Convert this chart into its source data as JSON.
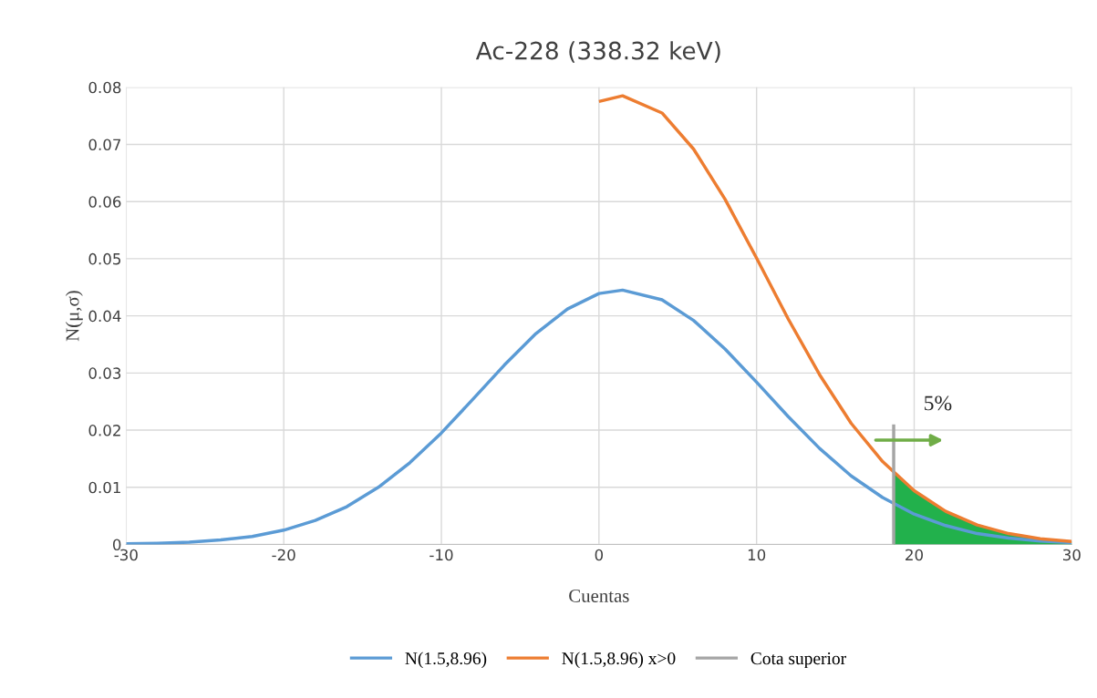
{
  "chart_data": {
    "type": "line",
    "title": "Ac-228 (338.32 keV)",
    "xlabel": "Cuentas",
    "ylabel": "N(μ,σ)",
    "xlim": [
      -30,
      30
    ],
    "xticks": [
      -30,
      -20,
      -10,
      0,
      10,
      20,
      30
    ],
    "ylim": [
      0,
      0.08
    ],
    "yticks": [
      0,
      0.01,
      0.02,
      0.03,
      0.04,
      0.05,
      0.06,
      0.07,
      0.08
    ],
    "grid": true,
    "legend": "bottom",
    "series": [
      {
        "type": "area",
        "color": "#22b14c",
        "x": [
          18.7,
          20,
          22,
          24,
          26,
          28,
          30
        ],
        "values": [
          0.0124,
          0.0094,
          0.0058,
          0.0034,
          0.0019,
          0.001,
          0.0005
        ]
      },
      {
        "name": "N(1.5,8.96)",
        "color": "#5b9bd5",
        "x": [
          -30,
          -28,
          -26,
          -24,
          -22,
          -20,
          -18,
          -16,
          -14,
          -12,
          -10,
          -8,
          -6,
          -4,
          -2,
          0,
          1.5,
          4,
          6,
          8,
          10,
          12,
          14,
          16,
          18,
          20,
          22,
          24,
          26,
          28,
          30
        ],
        "values": [
          0.0001,
          0.0002,
          0.0004,
          0.0008,
          0.0014,
          0.0025,
          0.0042,
          0.0066,
          0.01,
          0.0143,
          0.0195,
          0.0254,
          0.0314,
          0.0369,
          0.0412,
          0.0439,
          0.0445,
          0.0428,
          0.0392,
          0.0342,
          0.0284,
          0.0224,
          0.0168,
          0.012,
          0.0082,
          0.0053,
          0.0033,
          0.0019,
          0.0011,
          0.0006,
          0.0003
        ]
      },
      {
        "name": "N(1.5,8.96) x>0",
        "color": "#ed7d31",
        "x": [
          0,
          1.5,
          4,
          6,
          8,
          10,
          12,
          14,
          16,
          18,
          20,
          22,
          24,
          26,
          28,
          30
        ],
        "values": [
          0.0775,
          0.0785,
          0.0755,
          0.0692,
          0.0604,
          0.0501,
          0.0395,
          0.0297,
          0.0212,
          0.0145,
          0.0094,
          0.0058,
          0.0034,
          0.0019,
          0.001,
          0.0005
        ]
      },
      {
        "name": "Cota superior",
        "color": "#a5a5a5",
        "x": [
          18.7,
          18.7
        ],
        "values": [
          0,
          0.021
        ]
      }
    ],
    "annotations": [
      "5%"
    ]
  }
}
